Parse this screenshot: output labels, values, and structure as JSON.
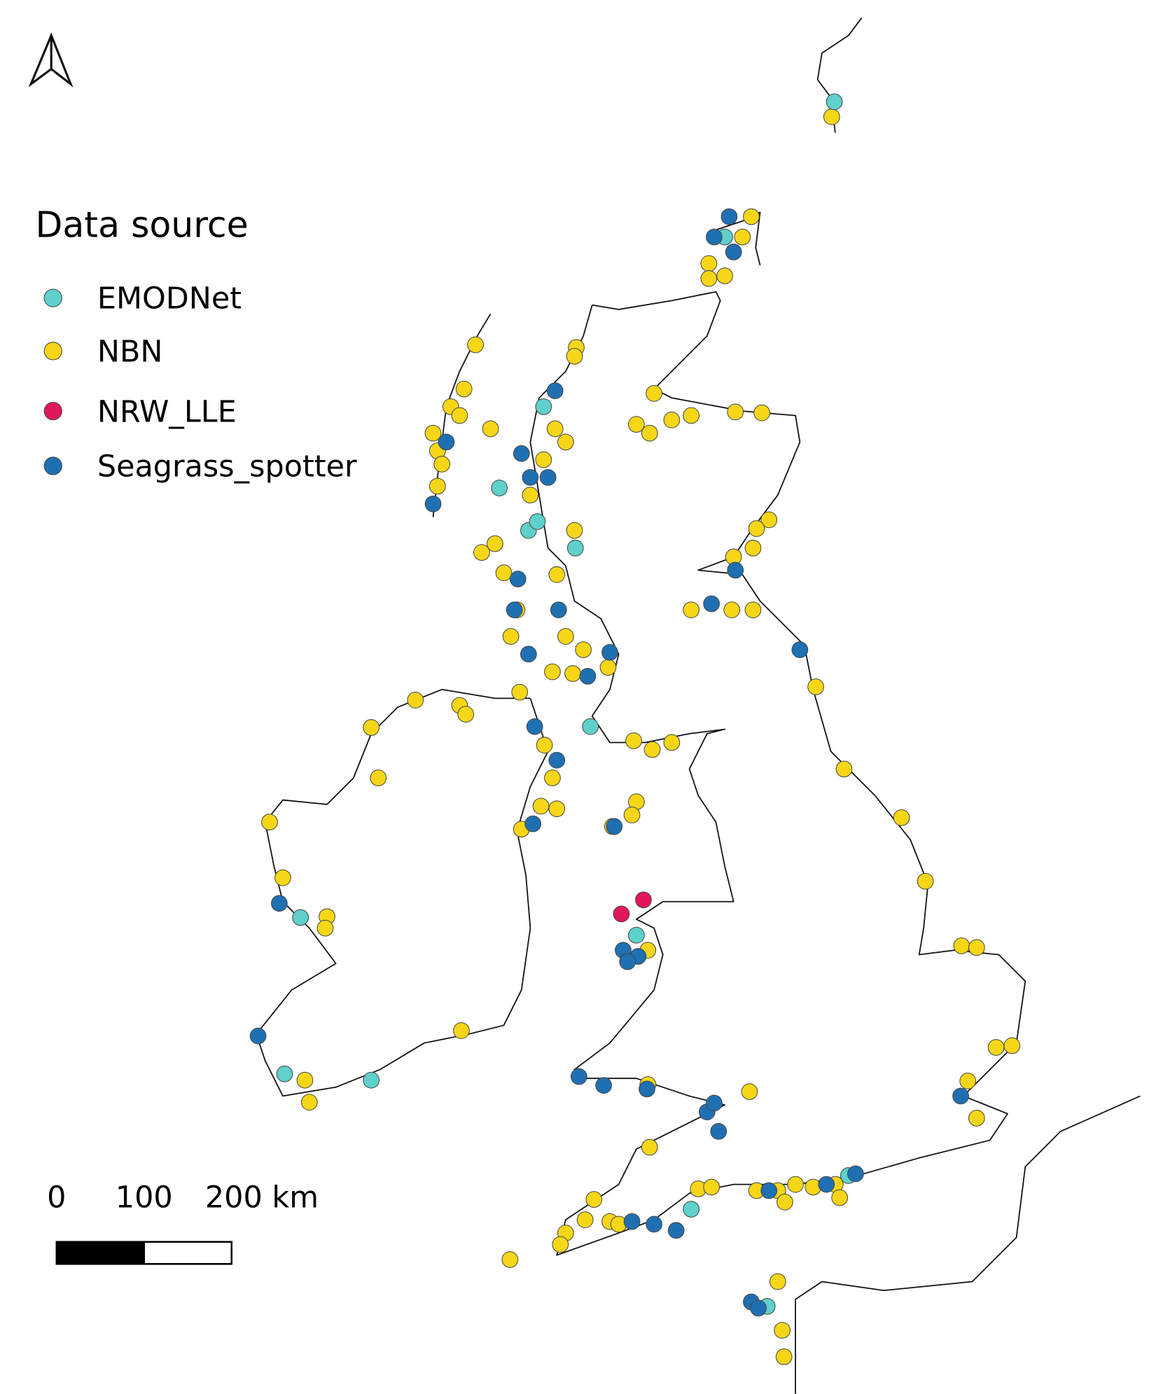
{
  "legend": {
    "title": "Data source",
    "items": [
      {
        "name": "EMODNet",
        "color": "#5fd0cb"
      },
      {
        "name": "NBN",
        "color": "#f6d617"
      },
      {
        "name": "NRW_LLE",
        "color": "#e0185a"
      },
      {
        "name": "Seagrass_spotter",
        "color": "#1f70b2"
      }
    ]
  },
  "scale_bar": {
    "labels": [
      "0",
      "100",
      "200 km"
    ]
  }
}
